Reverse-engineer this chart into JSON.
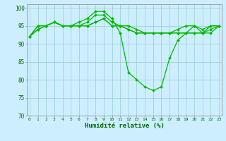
{
  "series": [
    {
      "values": [
        92,
        94,
        95,
        96,
        95,
        95,
        96,
        97,
        99,
        99,
        97,
        93,
        82,
        80,
        78,
        77,
        78,
        86,
        91,
        93,
        95,
        93,
        95,
        95
      ],
      "color": "#00bb00",
      "marker": "D",
      "markersize": 2,
      "linewidth": 0.9
    },
    {
      "values": [
        92,
        95,
        95,
        96,
        95,
        95,
        95,
        96,
        98,
        98,
        96,
        95,
        94,
        93,
        93,
        93,
        93,
        93,
        94,
        95,
        95,
        94,
        95,
        95
      ],
      "color": "#00bb00",
      "marker": "D",
      "markersize": 2,
      "linewidth": 0.9
    },
    {
      "values": [
        92,
        95,
        95,
        96,
        95,
        95,
        95,
        95,
        96,
        97,
        95,
        95,
        95,
        94,
        93,
        93,
        93,
        93,
        93,
        93,
        93,
        93,
        94,
        95
      ],
      "color": "#00bb00",
      "marker": "D",
      "markersize": 2,
      "linewidth": 0.9
    },
    {
      "values": [
        92,
        94,
        95,
        96,
        95,
        95,
        95,
        95,
        96,
        97,
        95,
        95,
        94,
        93,
        93,
        93,
        93,
        93,
        93,
        93,
        93,
        93,
        93,
        95
      ],
      "color": "#00bb00",
      "marker": "D",
      "markersize": 2,
      "linewidth": 0.9
    }
  ],
  "x_labels": [
    "0",
    "1",
    "2",
    "3",
    "4",
    "5",
    "6",
    "7",
    "8",
    "9",
    "10",
    "11",
    "12",
    "13",
    "14",
    "15",
    "16",
    "17",
    "18",
    "19",
    "20",
    "21",
    "22",
    "23"
  ],
  "xlabel": "Humidité relative (%)",
  "ylim": [
    70,
    101
  ],
  "yticks": [
    70,
    75,
    80,
    85,
    90,
    95,
    100
  ],
  "bg_color": "#cceeff",
  "grid_color": "#99cccc",
  "line_color": "#00bb00",
  "label_color": "#006600",
  "tick_color": "#006600"
}
